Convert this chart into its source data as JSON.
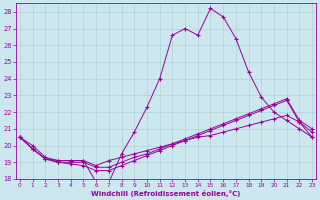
{
  "title": "",
  "xlabel": "Windchill (Refroidissement éolien,°C)",
  "bg_color": "#cce8ee",
  "line_color": "#990099",
  "grid_color": "#aacccc",
  "ylim": [
    18,
    28.5
  ],
  "xlim": [
    -0.3,
    23.3
  ],
  "yticks": [
    18,
    19,
    20,
    21,
    22,
    23,
    24,
    25,
    26,
    27,
    28
  ],
  "xticks": [
    0,
    1,
    2,
    3,
    4,
    5,
    6,
    7,
    8,
    9,
    10,
    11,
    12,
    13,
    14,
    15,
    16,
    17,
    18,
    19,
    20,
    21,
    22,
    23
  ],
  "series": [
    {
      "x": [
        0,
        1,
        2,
        3,
        4,
        5,
        6,
        7,
        8,
        9,
        10,
        11,
        12,
        13,
        14,
        15,
        16,
        17,
        18,
        19,
        20,
        21,
        22,
        23
      ],
      "y": [
        20.5,
        20.0,
        19.3,
        19.1,
        19.1,
        19.1,
        17.8,
        17.8,
        19.5,
        20.8,
        22.3,
        24.0,
        26.6,
        27.0,
        26.6,
        28.2,
        27.7,
        26.4,
        24.4,
        22.9,
        22.0,
        21.5,
        21.0,
        20.5
      ]
    },
    {
      "x": [
        0,
        1,
        2,
        3,
        4,
        5,
        6,
        7,
        8,
        9,
        10,
        11,
        12,
        13,
        14,
        15,
        16,
        17,
        18,
        19,
        20,
        21,
        22,
        23
      ],
      "y": [
        20.5,
        19.8,
        19.2,
        19.1,
        19.1,
        19.1,
        18.8,
        19.1,
        19.3,
        19.5,
        19.7,
        19.9,
        20.1,
        20.3,
        20.5,
        20.6,
        20.8,
        21.0,
        21.2,
        21.4,
        21.6,
        21.8,
        21.4,
        20.5
      ]
    },
    {
      "x": [
        0,
        1,
        2,
        3,
        4,
        5,
        6,
        7,
        8,
        9,
        10,
        11,
        12,
        13,
        14,
        15,
        16,
        17,
        18,
        19,
        20,
        21,
        22,
        23
      ],
      "y": [
        20.5,
        19.8,
        19.2,
        19.0,
        19.0,
        19.0,
        18.7,
        18.7,
        19.0,
        19.3,
        19.5,
        19.8,
        20.1,
        20.4,
        20.7,
        21.0,
        21.3,
        21.6,
        21.9,
        22.2,
        22.5,
        22.8,
        21.5,
        21.0
      ]
    },
    {
      "x": [
        0,
        1,
        2,
        3,
        4,
        5,
        6,
        7,
        8,
        9,
        10,
        11,
        12,
        13,
        14,
        15,
        16,
        17,
        18,
        19,
        20,
        21,
        22,
        23
      ],
      "y": [
        20.5,
        19.8,
        19.2,
        19.0,
        18.9,
        18.8,
        18.5,
        18.5,
        18.8,
        19.1,
        19.4,
        19.7,
        20.0,
        20.3,
        20.6,
        20.9,
        21.2,
        21.5,
        21.8,
        22.1,
        22.4,
        22.7,
        21.4,
        20.8
      ]
    }
  ]
}
